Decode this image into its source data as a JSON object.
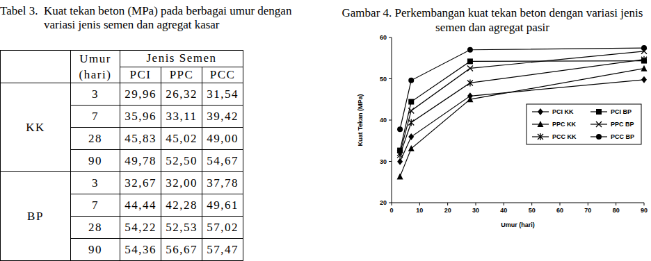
{
  "chart_data": {
    "type": "line",
    "title": "Gambar 4. Perkembangan kuat tekan beton dengan variasi jenis semen dan agregat pasir",
    "x_label": "Umur (hari)",
    "y_label": "Kuat Tekan (MPa)",
    "x": [
      3,
      7,
      28,
      90
    ],
    "series": [
      {
        "name": "PCI KK",
        "color": "#000000",
        "marker": "diamond",
        "line_style": "solid",
        "values": [
          29.96,
          35.96,
          45.83,
          49.78
        ]
      },
      {
        "name": "PCI BP",
        "color": "#000000",
        "marker": "square",
        "line_style": "solid",
        "values": [
          32.67,
          44.44,
          54.22,
          54.36
        ]
      },
      {
        "name": "PPC KK",
        "color": "#000000",
        "marker": "triangle",
        "line_style": "solid",
        "values": [
          26.32,
          33.11,
          45.02,
          52.5
        ]
      },
      {
        "name": "PPC BP",
        "color": "#000000",
        "marker": "x",
        "line_style": "solid",
        "values": [
          32.0,
          42.28,
          52.53,
          56.67
        ]
      },
      {
        "name": "PCC KK",
        "color": "#000000",
        "marker": "asterisk",
        "line_style": "solid",
        "values": [
          31.54,
          39.42,
          49.0,
          54.67
        ]
      },
      {
        "name": "PCC BP",
        "color": "#000000",
        "marker": "circle",
        "line_style": "solid",
        "values": [
          37.78,
          49.61,
          57.02,
          57.47
        ]
      }
    ],
    "xlim": [
      0,
      90
    ],
    "xticks": [
      0,
      10,
      20,
      30,
      40,
      50,
      60,
      70,
      80,
      90
    ],
    "ylim": [
      20,
      60
    ],
    "yticks": [
      20,
      30,
      40,
      50,
      60
    ],
    "grid": false,
    "legend": "right"
  },
  "table": {
    "caption": "Tabel 3.  Kuat tekan beton (MPa) pada berbagai umur dengan variasi jenis semen dan agregat kasar",
    "header": {
      "age": [
        "Umur",
        "(hari)"
      ],
      "cement": "Jenis Semen",
      "types": [
        "PCI",
        "PPC",
        "PCC"
      ]
    },
    "groups": [
      {
        "name": "KK",
        "rows": [
          {
            "age": "3",
            "values": [
              "29,96",
              "26,32",
              "31,54"
            ]
          },
          {
            "age": "7",
            "values": [
              "35,96",
              "33,11",
              "39,42"
            ]
          },
          {
            "age": "28",
            "values": [
              "45,83",
              "45,02",
              "49,00"
            ]
          },
          {
            "age": "90",
            "values": [
              "49,78",
              "52,50",
              "54,67"
            ]
          }
        ]
      },
      {
        "name": "BP",
        "rows": [
          {
            "age": "3",
            "values": [
              "32,67",
              "32,00",
              "37,78"
            ]
          },
          {
            "age": "7",
            "values": [
              "44,44",
              "42,28",
              "49,61"
            ]
          },
          {
            "age": "28",
            "values": [
              "54,22",
              "52,53",
              "57,02"
            ]
          },
          {
            "age": "90",
            "values": [
              "54,36",
              "56,67",
              "57,47"
            ]
          }
        ]
      }
    ]
  }
}
